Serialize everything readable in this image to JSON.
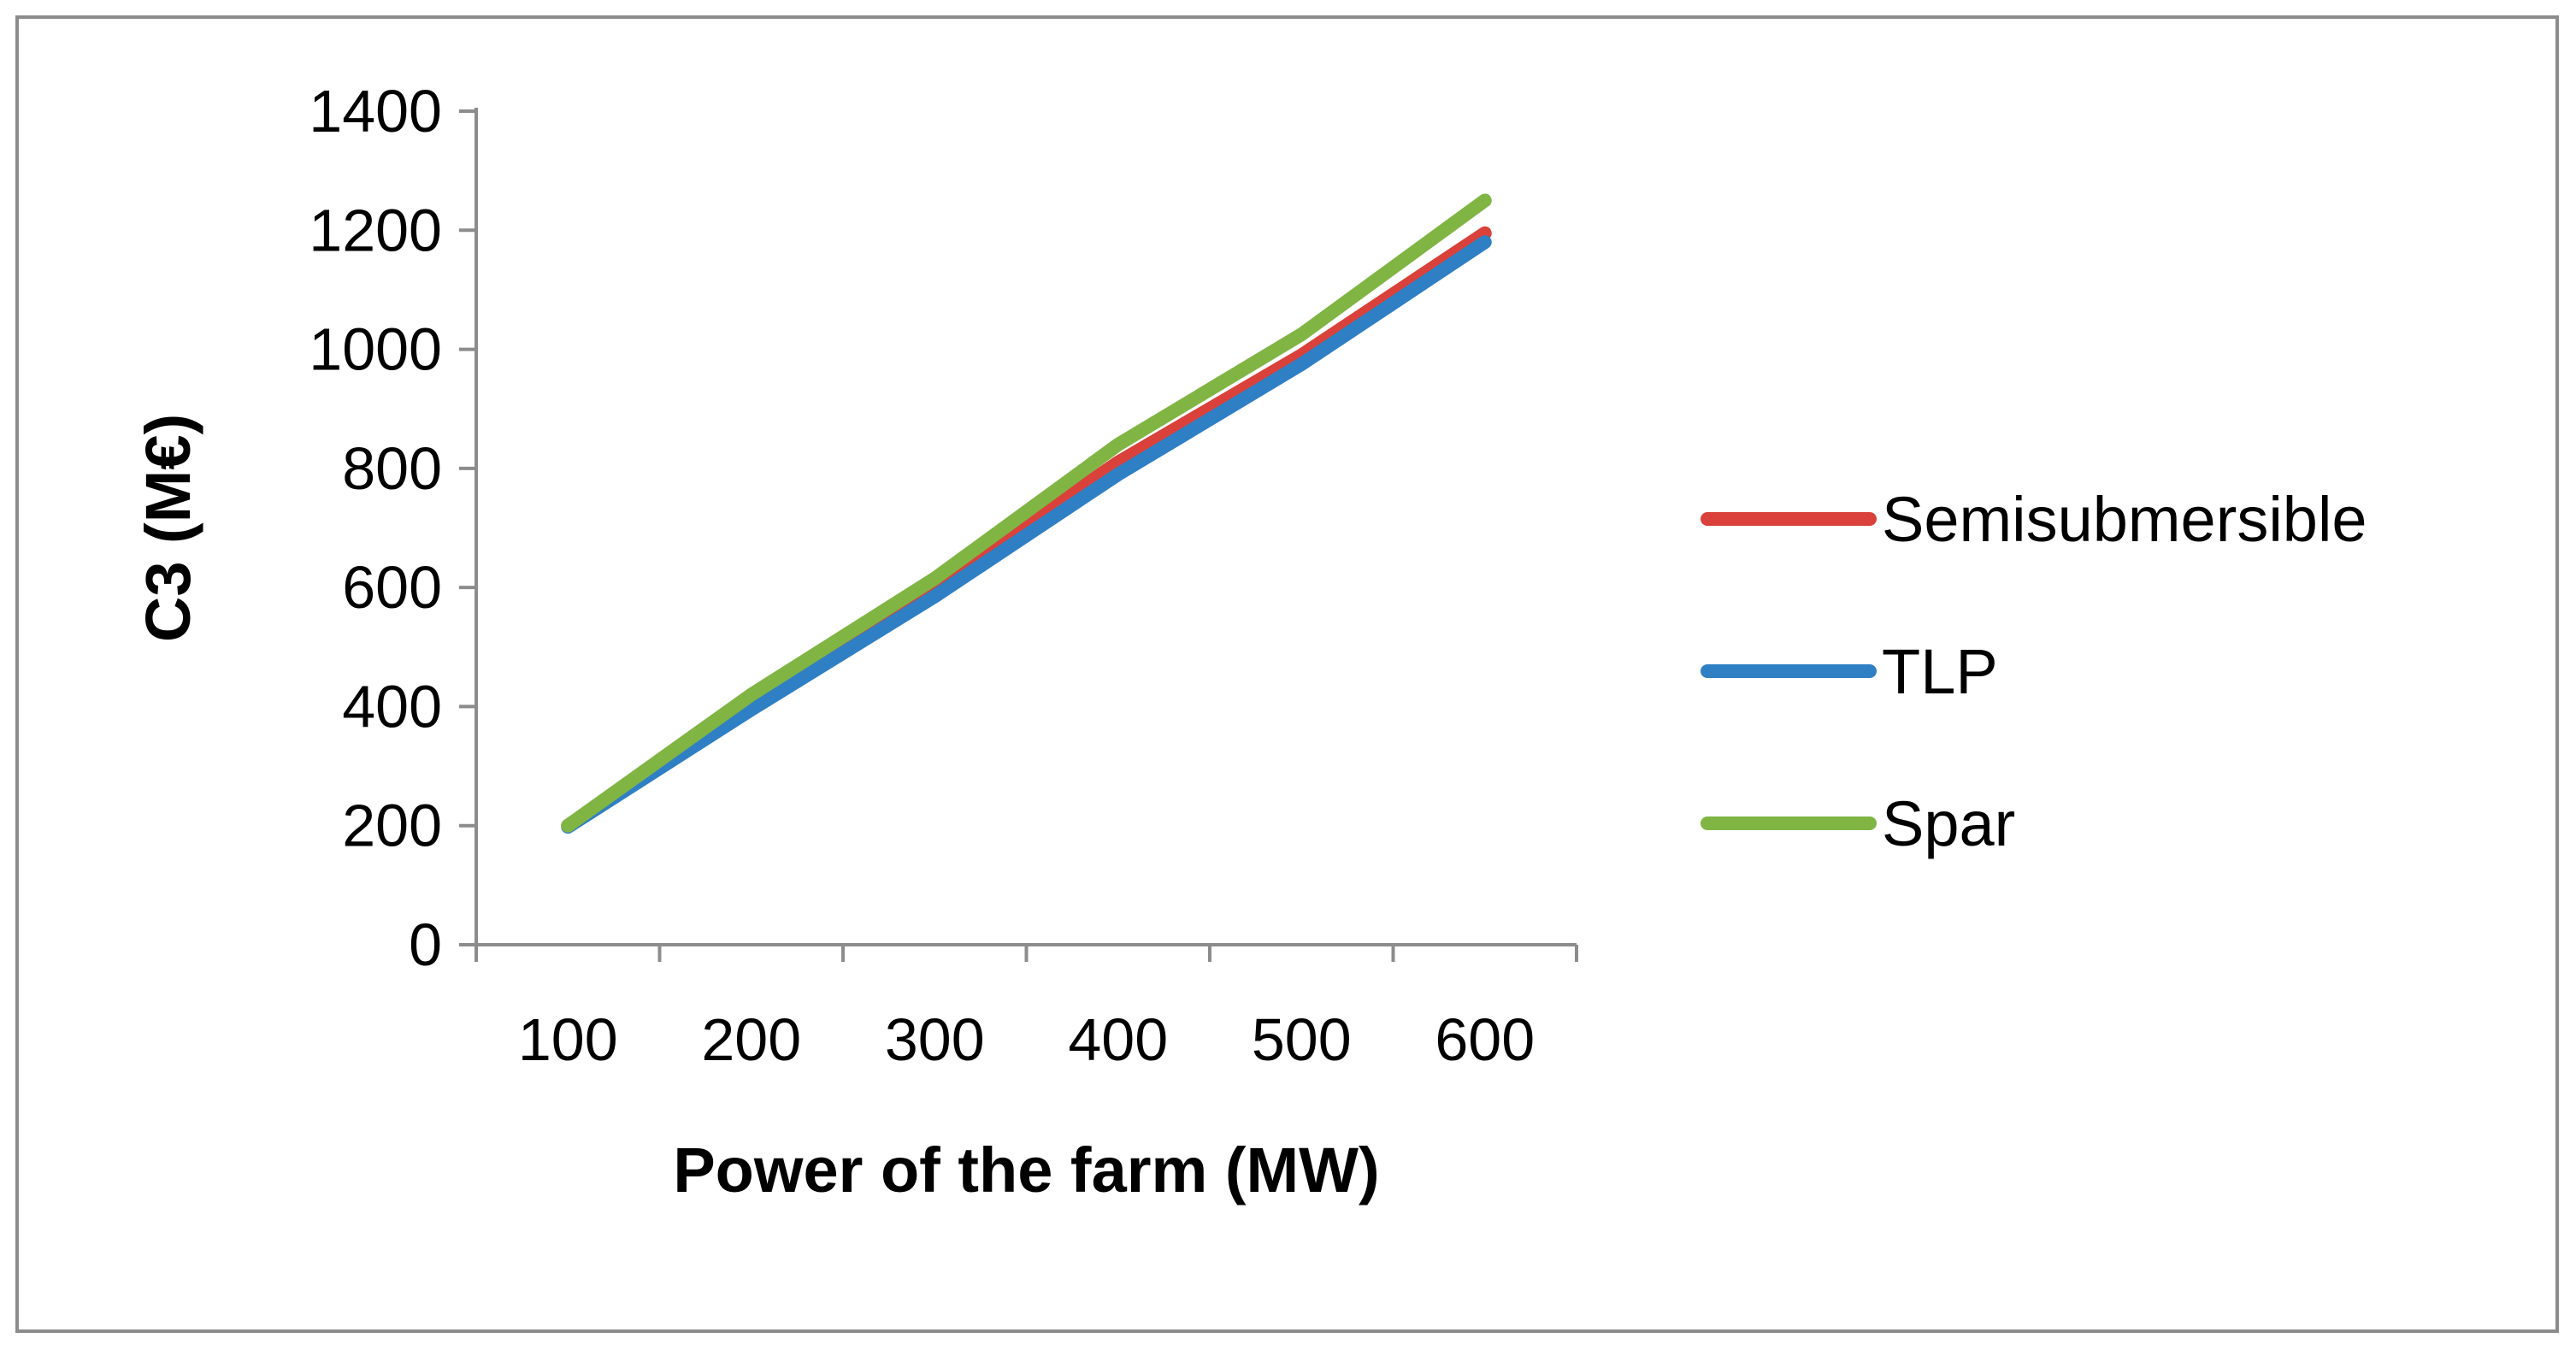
{
  "chart_data": {
    "type": "line",
    "title": "",
    "xlabel": "Power of the farm (MW)",
    "ylabel": "C3 (M€)",
    "categories": [
      "100",
      "200",
      "300",
      "400",
      "500",
      "600"
    ],
    "ylim": [
      0,
      1400
    ],
    "yticks": [
      0,
      200,
      400,
      600,
      800,
      1000,
      1200,
      1400
    ],
    "ytick_labels": [
      "0",
      "200",
      "400",
      "600",
      "800",
      "1000",
      "1200",
      "1400"
    ],
    "grid": false,
    "legend_position": "right",
    "series": [
      {
        "name": "Semisubmersible",
        "color": "#d9413a",
        "values": [
          200,
          405,
          600,
          810,
          990,
          1195
        ]
      },
      {
        "name": "TLP",
        "color": "#2f7fc4",
        "values": [
          198,
          395,
          585,
          790,
          975,
          1180
        ]
      },
      {
        "name": "Spar",
        "color": "#80b544",
        "values": [
          200,
          420,
          615,
          840,
          1025,
          1250
        ]
      }
    ]
  }
}
